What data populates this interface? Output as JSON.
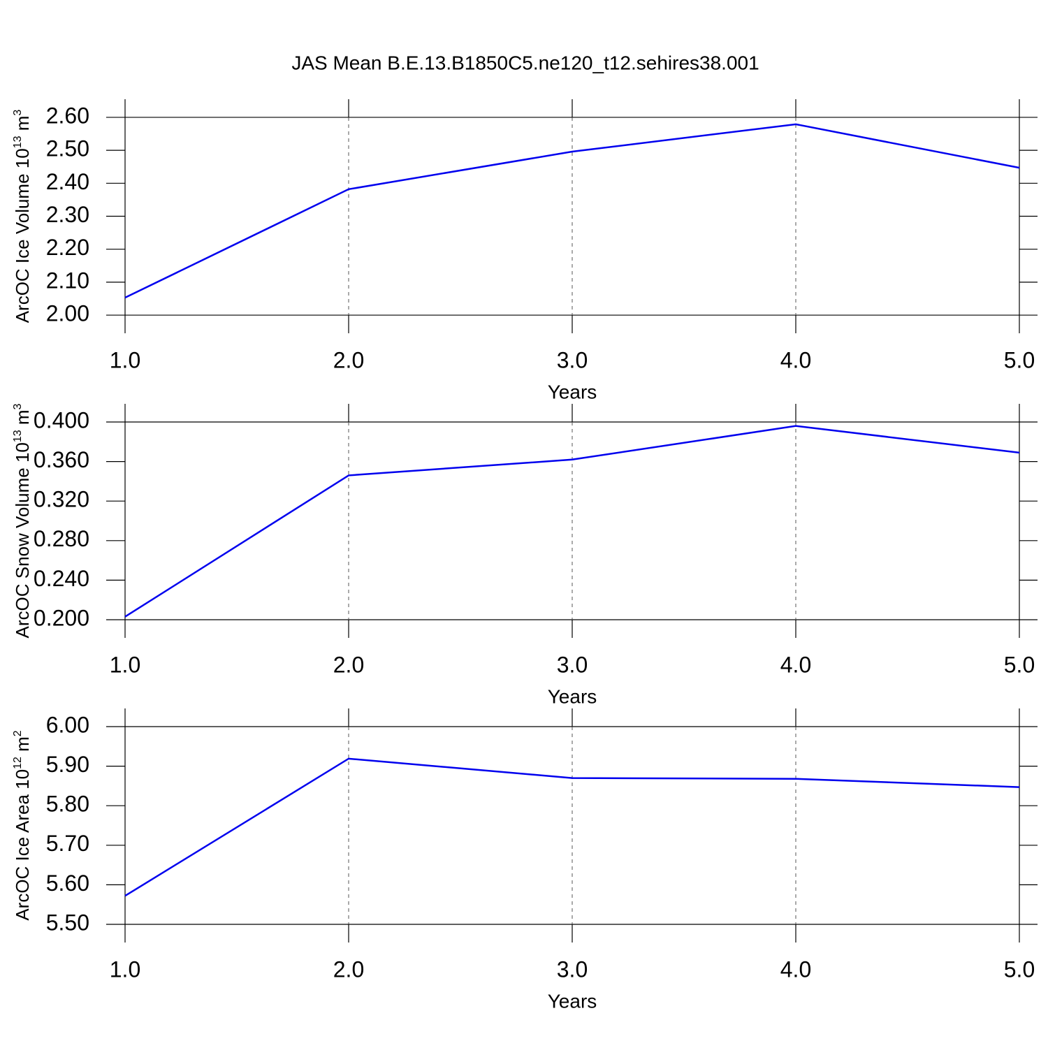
{
  "chart_data": [
    {
      "type": "line",
      "title": "JAS Mean B.E.13.B1850C5.ne120_t12.sehires38.001",
      "ylabel": [
        "ArcOC Ice Volume 10",
        "13",
        " m",
        "3"
      ],
      "xlabel": "Years",
      "x": [
        1,
        2,
        3,
        4,
        5
      ],
      "series": [
        {
          "color": "#0000ee",
          "values": [
            2.053,
            2.382,
            2.496,
            2.579,
            2.447
          ]
        }
      ],
      "xlim": [
        1,
        5
      ],
      "xticks": [
        {
          "value": 1,
          "label": "1.0"
        },
        {
          "value": 2,
          "label": "2.0"
        },
        {
          "value": 3,
          "label": "3.0"
        },
        {
          "value": 4,
          "label": "4.0"
        },
        {
          "value": 5,
          "label": "5.0"
        }
      ],
      "ylim": [
        1.945,
        2.655
      ],
      "yticks": [
        {
          "value": 2.0,
          "label": "2.00"
        },
        {
          "value": 2.1,
          "label": "2.10"
        },
        {
          "value": 2.2,
          "label": "2.20"
        },
        {
          "value": 2.3,
          "label": "2.30"
        },
        {
          "value": 2.4,
          "label": "2.40"
        },
        {
          "value": 2.5,
          "label": "2.50"
        },
        {
          "value": 2.6,
          "label": "2.60"
        }
      ]
    },
    {
      "type": "line",
      "ylabel": [
        "ArcOC Snow Volume 10",
        "13",
        " m",
        "3"
      ],
      "xlabel": "Years",
      "x": [
        1,
        2,
        3,
        4,
        5
      ],
      "series": [
        {
          "color": "#0000ee",
          "values": [
            0.203,
            0.346,
            0.362,
            0.396,
            0.369
          ]
        }
      ],
      "xlim": [
        1,
        5
      ],
      "xticks": [
        {
          "value": 1,
          "label": "1.0"
        },
        {
          "value": 2,
          "label": "2.0"
        },
        {
          "value": 3,
          "label": "3.0"
        },
        {
          "value": 4,
          "label": "4.0"
        },
        {
          "value": 5,
          "label": "5.0"
        }
      ],
      "ylim": [
        0.1816,
        0.4184
      ],
      "yticks": [
        {
          "value": 0.2,
          "label": "0.200"
        },
        {
          "value": 0.24,
          "label": "0.240"
        },
        {
          "value": 0.28,
          "label": "0.280"
        },
        {
          "value": 0.32,
          "label": "0.320"
        },
        {
          "value": 0.36,
          "label": "0.360"
        },
        {
          "value": 0.4,
          "label": "0.400"
        }
      ]
    },
    {
      "type": "line",
      "ylabel": [
        "ArcOC Ice Area 10",
        "12",
        " m",
        "2"
      ],
      "xlabel": "Years",
      "x": [
        1,
        2,
        3,
        4,
        5
      ],
      "series": [
        {
          "color": "#0000ee",
          "values": [
            5.572,
            5.919,
            5.87,
            5.868,
            5.847
          ]
        }
      ],
      "xlim": [
        1,
        5
      ],
      "xticks": [
        {
          "value": 1,
          "label": "1.0"
        },
        {
          "value": 2,
          "label": "2.0"
        },
        {
          "value": 3,
          "label": "3.0"
        },
        {
          "value": 4,
          "label": "4.0"
        },
        {
          "value": 5,
          "label": "5.0"
        }
      ],
      "ylim": [
        5.454,
        6.046
      ],
      "yticks": [
        {
          "value": 5.5,
          "label": "5.50"
        },
        {
          "value": 5.6,
          "label": "5.60"
        },
        {
          "value": 5.7,
          "label": "5.70"
        },
        {
          "value": 5.8,
          "label": "5.80"
        },
        {
          "value": 5.9,
          "label": "5.90"
        },
        {
          "value": 6.0,
          "label": "6.00"
        }
      ]
    }
  ]
}
